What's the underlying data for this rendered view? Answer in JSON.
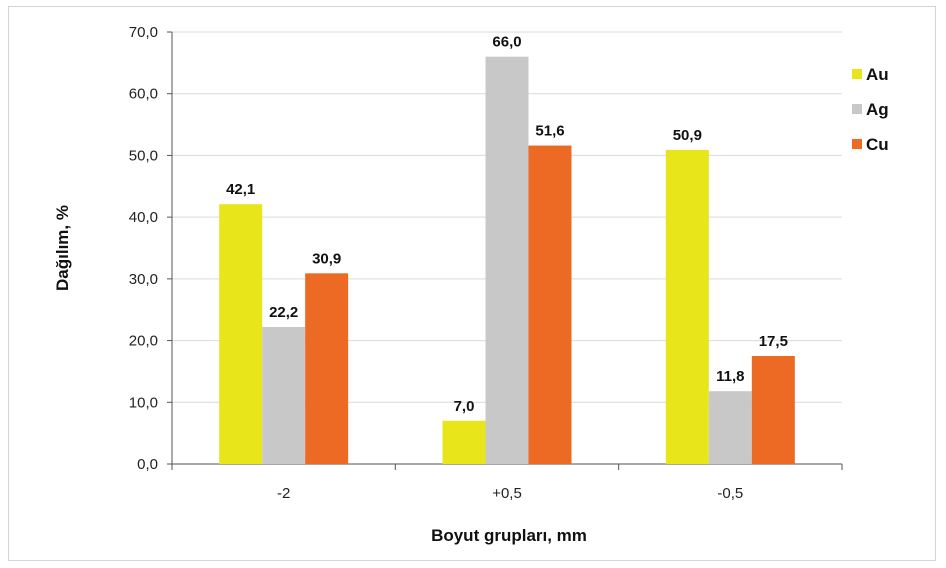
{
  "chart_data": {
    "type": "bar",
    "title": "",
    "xlabel": "Boyut grupları, mm",
    "ylabel": "Dağılım, %",
    "categories": [
      "-2",
      "+0,5",
      "-0,5"
    ],
    "series": [
      {
        "name": "Au",
        "color": "#e8e51a",
        "values": [
          42.1,
          7.0,
          50.9
        ],
        "labels": [
          "42,1",
          "7,0",
          "50,9"
        ]
      },
      {
        "name": "Ag",
        "color": "#c8c8c8",
        "values": [
          22.2,
          66.0,
          11.8
        ],
        "labels": [
          "22,2",
          "66,0",
          "11,8"
        ]
      },
      {
        "name": "Cu",
        "color": "#ec6a24",
        "values": [
          30.9,
          51.6,
          17.5
        ],
        "labels": [
          "30,9",
          "51,6",
          "17,5"
        ]
      }
    ],
    "ylim": [
      0,
      70
    ],
    "yticks": [
      0,
      10,
      20,
      30,
      40,
      50,
      60,
      70
    ],
    "ytick_labels": [
      "0,0",
      "10,0",
      "20,0",
      "30,0",
      "40,0",
      "50,0",
      "60,0",
      "70,0"
    ],
    "grid": true,
    "legend_position": "top-right"
  }
}
